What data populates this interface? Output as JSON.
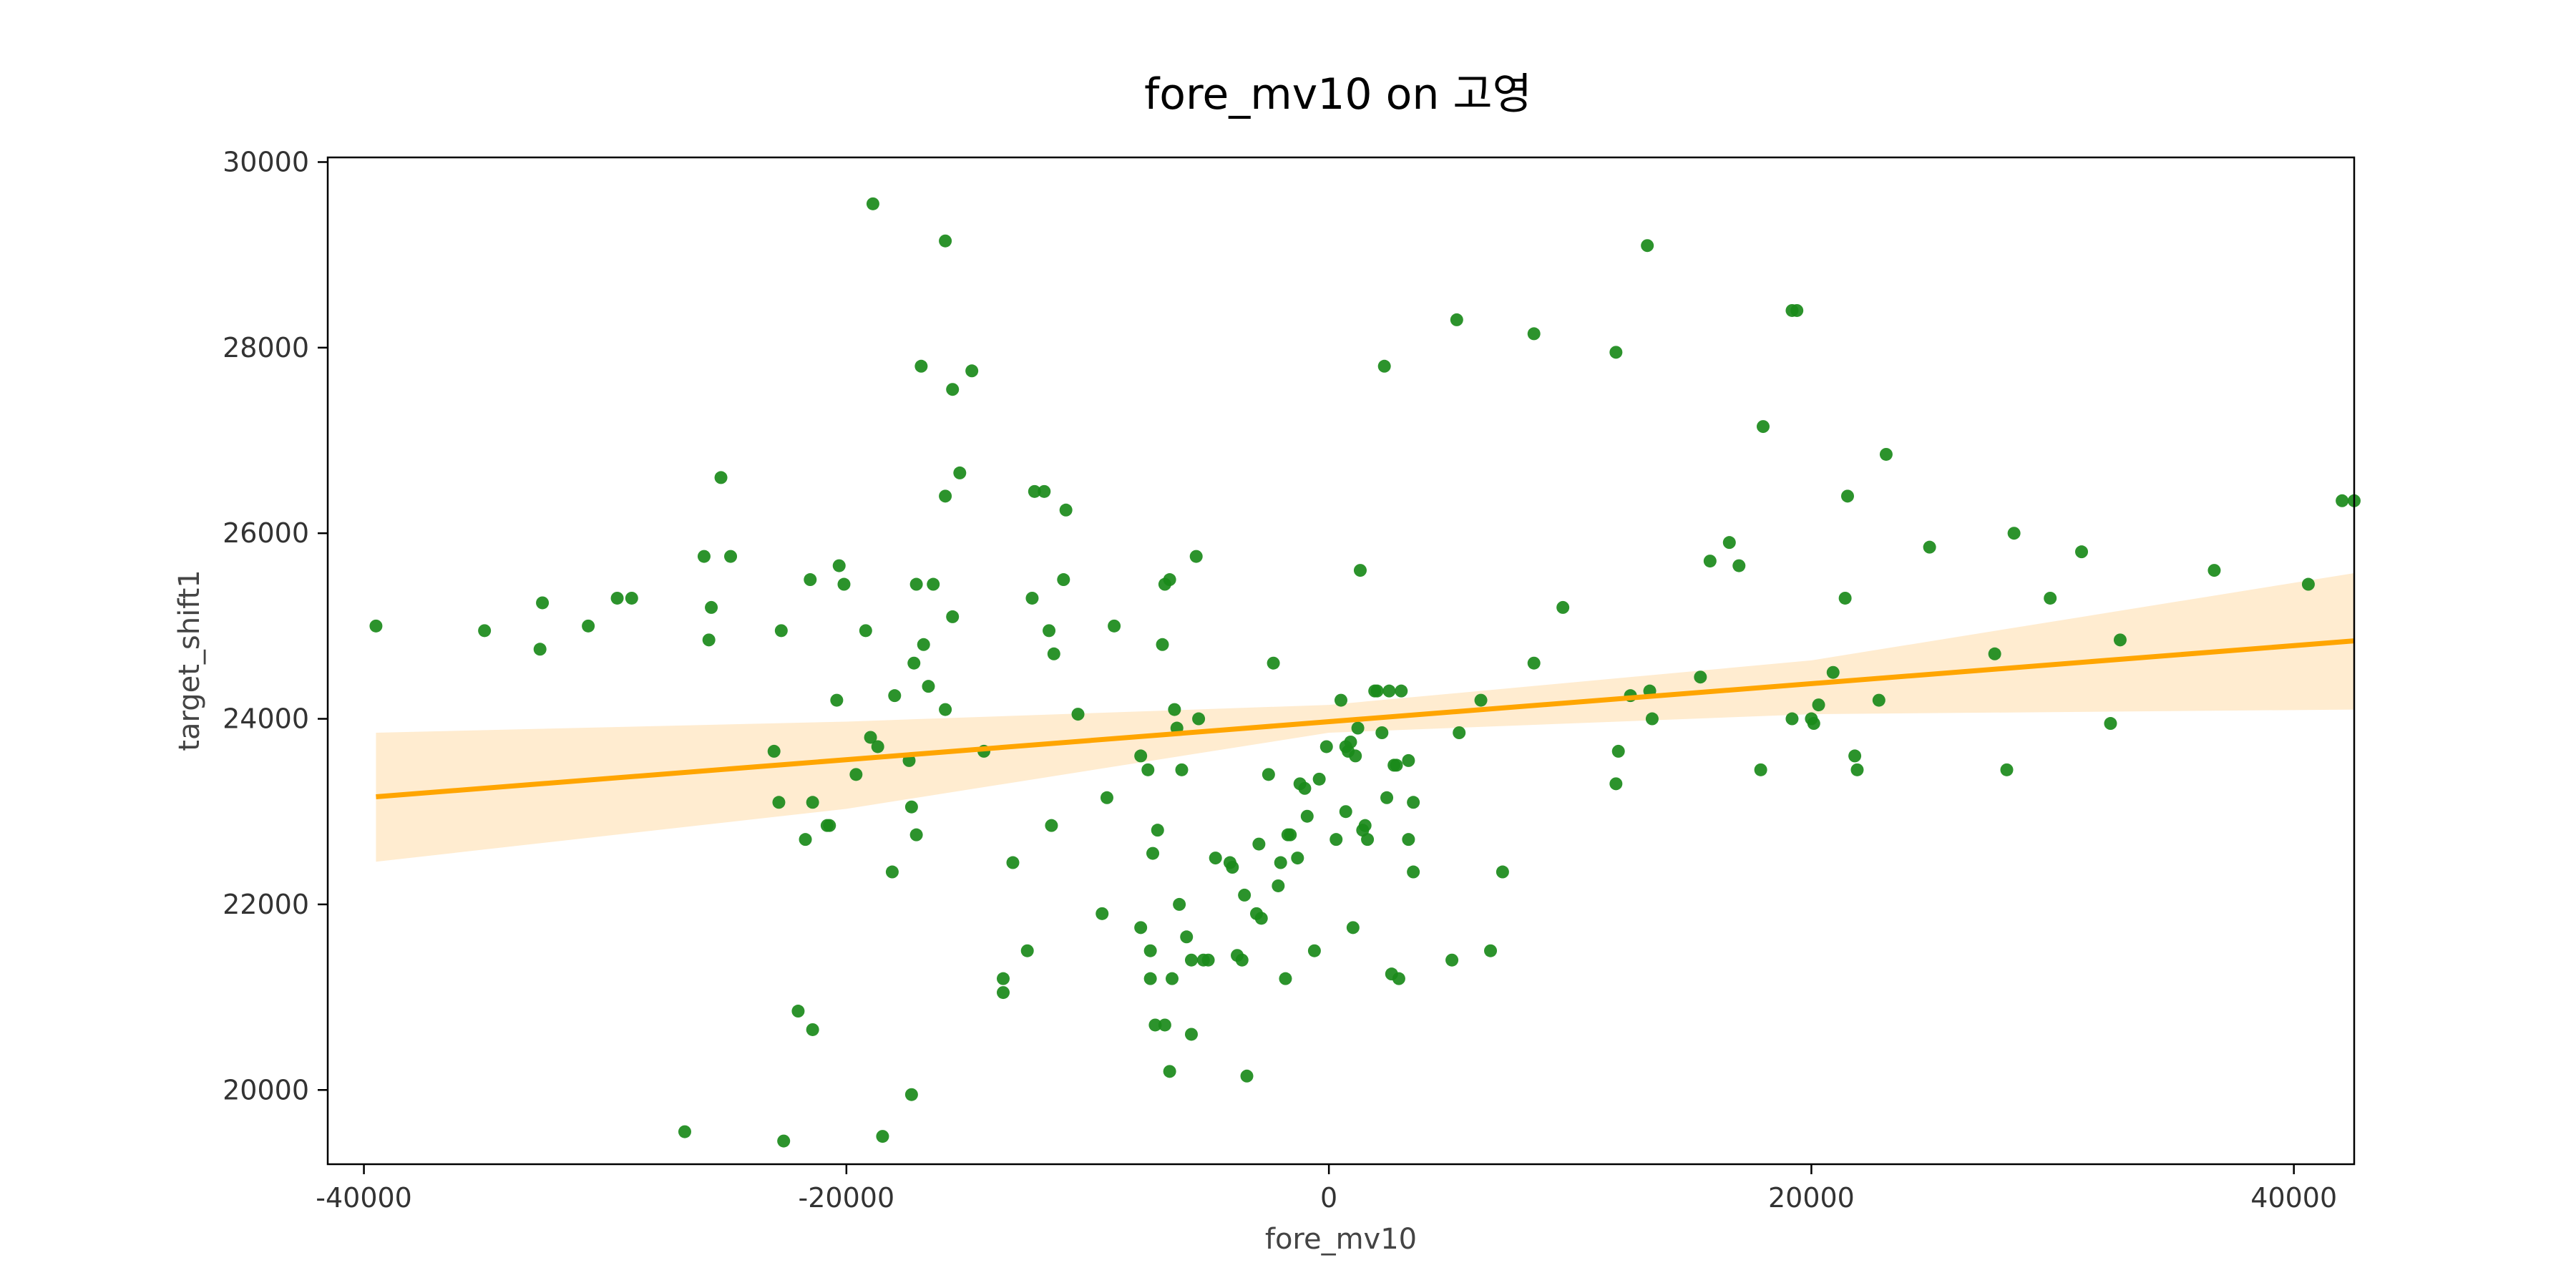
{
  "chart_data": {
    "type": "scatter",
    "title": "fore_mv10 on 고영",
    "xlabel": "fore_mv10",
    "ylabel": "target_shift1",
    "xlim": [
      -41500,
      42500
    ],
    "ylim": [
      19200,
      30050
    ],
    "xticks": [
      -40000,
      -20000,
      0,
      20000,
      40000
    ],
    "yticks": [
      20000,
      22000,
      24000,
      26000,
      28000,
      30000
    ],
    "grid": false,
    "colors": {
      "points": "#1a8a1a",
      "fit_line": "#ffa500",
      "ci_band": "#ffe9c8",
      "axes": "#000000"
    },
    "series": [
      {
        "kind": "points",
        "points": [
          [
            -39500,
            25000
          ],
          [
            -35000,
            24950
          ],
          [
            -32700,
            24750
          ],
          [
            -32600,
            25250
          ],
          [
            -30700,
            25000
          ],
          [
            -29500,
            25300
          ],
          [
            -28900,
            25300
          ],
          [
            -26700,
            19550
          ],
          [
            -25900,
            25750
          ],
          [
            -25700,
            24850
          ],
          [
            -25600,
            25200
          ],
          [
            -25200,
            26600
          ],
          [
            -24800,
            25750
          ],
          [
            -23000,
            23650
          ],
          [
            -22800,
            23100
          ],
          [
            -22700,
            24950
          ],
          [
            -22600,
            19450
          ],
          [
            -22000,
            20850
          ],
          [
            -21700,
            22700
          ],
          [
            -21500,
            25500
          ],
          [
            -21400,
            23100
          ],
          [
            -21400,
            20650
          ],
          [
            -20800,
            22850
          ],
          [
            -20700,
            22850
          ],
          [
            -20400,
            24200
          ],
          [
            -20300,
            25650
          ],
          [
            -20100,
            25450
          ],
          [
            -19600,
            23400
          ],
          [
            -19200,
            24950
          ],
          [
            -19000,
            23800
          ],
          [
            -18900,
            29550
          ],
          [
            -18700,
            23700
          ],
          [
            -18500,
            19500
          ],
          [
            -18100,
            22350
          ],
          [
            -18000,
            24250
          ],
          [
            -17400,
            23550
          ],
          [
            -17300,
            19950
          ],
          [
            -17300,
            23050
          ],
          [
            -17200,
            24600
          ],
          [
            -17100,
            22750
          ],
          [
            -17100,
            25450
          ],
          [
            -16900,
            27800
          ],
          [
            -16800,
            24800
          ],
          [
            -16600,
            24350
          ],
          [
            -16400,
            25450
          ],
          [
            -15900,
            24100
          ],
          [
            -15900,
            29150
          ],
          [
            -15900,
            26400
          ],
          [
            -15600,
            25100
          ],
          [
            -15600,
            27550
          ],
          [
            -15300,
            26650
          ],
          [
            -14800,
            27750
          ],
          [
            -14300,
            23650
          ],
          [
            -13500,
            21200
          ],
          [
            -13500,
            21050
          ],
          [
            -13100,
            22450
          ],
          [
            -12500,
            21500
          ],
          [
            -12300,
            25300
          ],
          [
            -12200,
            26450
          ],
          [
            -11800,
            26450
          ],
          [
            -11600,
            24950
          ],
          [
            -11500,
            22850
          ],
          [
            -11400,
            24700
          ],
          [
            -11000,
            25500
          ],
          [
            -10900,
            26250
          ],
          [
            -10400,
            24050
          ],
          [
            -9400,
            21900
          ],
          [
            -9200,
            23150
          ],
          [
            -8900,
            25000
          ],
          [
            -7800,
            21750
          ],
          [
            -7800,
            23600
          ],
          [
            -7500,
            23450
          ],
          [
            -7400,
            21500
          ],
          [
            -7400,
            21200
          ],
          [
            -7300,
            22550
          ],
          [
            -7200,
            20700
          ],
          [
            -7100,
            22800
          ],
          [
            -6900,
            24800
          ],
          [
            -6800,
            20700
          ],
          [
            -6800,
            25450
          ],
          [
            -6600,
            20200
          ],
          [
            -6600,
            25500
          ],
          [
            -6500,
            21200
          ],
          [
            -6400,
            24100
          ],
          [
            -6300,
            23900
          ],
          [
            -6200,
            22000
          ],
          [
            -6100,
            23450
          ],
          [
            -5900,
            21650
          ],
          [
            -5700,
            20600
          ],
          [
            -5700,
            21400
          ],
          [
            -5500,
            25750
          ],
          [
            -5400,
            24000
          ],
          [
            -5200,
            21400
          ],
          [
            -5000,
            21400
          ],
          [
            -4700,
            22500
          ],
          [
            -4100,
            22450
          ],
          [
            -4000,
            22400
          ],
          [
            -3800,
            21450
          ],
          [
            -3600,
            21400
          ],
          [
            -3500,
            22100
          ],
          [
            -3400,
            20150
          ],
          [
            -3000,
            21900
          ],
          [
            -2900,
            22650
          ],
          [
            -2800,
            21850
          ],
          [
            -2500,
            23400
          ],
          [
            -2300,
            24600
          ],
          [
            -2100,
            22200
          ],
          [
            -2000,
            22450
          ],
          [
            -1800,
            21200
          ],
          [
            -1700,
            22750
          ],
          [
            -1600,
            22750
          ],
          [
            -1300,
            22500
          ],
          [
            -1200,
            23300
          ],
          [
            -1000,
            23250
          ],
          [
            -900,
            22950
          ],
          [
            -600,
            21500
          ],
          [
            -400,
            23350
          ],
          [
            -100,
            23700
          ],
          [
            300,
            22700
          ],
          [
            500,
            24200
          ],
          [
            700,
            23000
          ],
          [
            700,
            23700
          ],
          [
            800,
            23650
          ],
          [
            900,
            23750
          ],
          [
            1000,
            21750
          ],
          [
            1100,
            23600
          ],
          [
            1200,
            23900
          ],
          [
            1300,
            25600
          ],
          [
            1400,
            22800
          ],
          [
            1500,
            22850
          ],
          [
            1600,
            22700
          ],
          [
            1900,
            24300
          ],
          [
            2000,
            24300
          ],
          [
            2200,
            23850
          ],
          [
            2300,
            27800
          ],
          [
            2400,
            23150
          ],
          [
            2500,
            24300
          ],
          [
            2600,
            21250
          ],
          [
            2700,
            23500
          ],
          [
            2800,
            23500
          ],
          [
            2900,
            21200
          ],
          [
            3000,
            24300
          ],
          [
            3300,
            22700
          ],
          [
            3300,
            23550
          ],
          [
            3500,
            23100
          ],
          [
            3500,
            22350
          ],
          [
            5100,
            21400
          ],
          [
            5300,
            28300
          ],
          [
            5400,
            23850
          ],
          [
            6300,
            24200
          ],
          [
            6700,
            21500
          ],
          [
            7200,
            22350
          ],
          [
            8500,
            24600
          ],
          [
            8500,
            28150
          ],
          [
            9700,
            25200
          ],
          [
            11900,
            27950
          ],
          [
            11900,
            23300
          ],
          [
            12000,
            23650
          ],
          [
            12500,
            24250
          ],
          [
            13200,
            29100
          ],
          [
            13300,
            24300
          ],
          [
            13400,
            24000
          ],
          [
            15400,
            24450
          ],
          [
            15800,
            25700
          ],
          [
            16600,
            25900
          ],
          [
            17000,
            25650
          ],
          [
            17900,
            23450
          ],
          [
            18000,
            27150
          ],
          [
            19200,
            24000
          ],
          [
            19200,
            28400
          ],
          [
            19400,
            28400
          ],
          [
            20000,
            24000
          ],
          [
            20100,
            23950
          ],
          [
            20300,
            24150
          ],
          [
            20900,
            24500
          ],
          [
            21400,
            25300
          ],
          [
            21500,
            26400
          ],
          [
            21800,
            23600
          ],
          [
            21900,
            23450
          ],
          [
            22800,
            24200
          ],
          [
            23100,
            26850
          ],
          [
            24900,
            25850
          ],
          [
            27600,
            24700
          ],
          [
            28100,
            23450
          ],
          [
            28400,
            26000
          ],
          [
            29900,
            25300
          ],
          [
            31200,
            25800
          ],
          [
            32400,
            23950
          ],
          [
            32800,
            24850
          ],
          [
            36700,
            25600
          ],
          [
            40600,
            25450
          ],
          [
            42000,
            26350
          ],
          [
            42500,
            26350
          ]
        ]
      },
      {
        "kind": "fit_line",
        "points": [
          [
            -39500,
            23160
          ],
          [
            42500,
            24840
          ]
        ]
      },
      {
        "kind": "confidence_band",
        "upper": [
          [
            -39500,
            23850
          ],
          [
            -20000,
            23970
          ],
          [
            0,
            24150
          ],
          [
            20000,
            24630
          ],
          [
            42500,
            25570
          ]
        ],
        "lower": [
          [
            -39500,
            22460
          ],
          [
            -20000,
            23030
          ],
          [
            0,
            23850
          ],
          [
            20000,
            24050
          ],
          [
            42500,
            24100
          ]
        ]
      }
    ]
  }
}
